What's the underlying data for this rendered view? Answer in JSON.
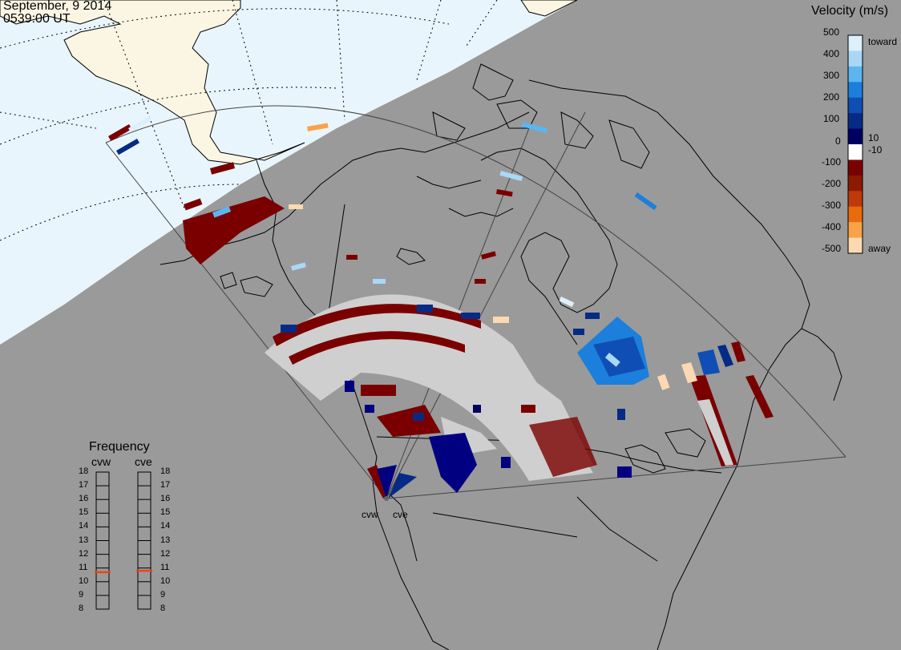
{
  "header": {
    "date": "September, 9 2014",
    "time": "0539:00 UT"
  },
  "colorbar": {
    "title": "Velocity (m/s)",
    "ticks": [
      "500",
      "400",
      "300",
      "200",
      "100",
      "10",
      "0",
      "-10",
      "-100",
      "-200",
      "-300",
      "-400",
      "-500"
    ],
    "toward_label": "toward",
    "away_label": "away",
    "colors": [
      "#deeffc",
      "#a9d8f7",
      "#5bb6f0",
      "#1c7fdc",
      "#0f4fb5",
      "#062b86",
      "#000060",
      "#ffffff",
      "#7a0000",
      "#8b1a00",
      "#c0390a",
      "#e86b0c",
      "#f9a24a",
      "#fcd9b2"
    ]
  },
  "frequency": {
    "title": "Frequency",
    "radars": [
      {
        "name": "cvw",
        "value_mhz": 10.7
      },
      {
        "name": "cve",
        "value_mhz": 10.8
      }
    ],
    "scale": [
      "18",
      "17",
      "16",
      "15",
      "14",
      "13",
      "12",
      "11",
      "10",
      "9",
      "8"
    ],
    "marker_color": "#e8461a"
  },
  "radars": [
    {
      "name": "cvw"
    },
    {
      "name": "cve"
    }
  ],
  "colors": {
    "night": "#9a9a9a",
    "day_ocean": "#e9f5fc",
    "day_land": "#fbf6e4",
    "ground_scatter": "#cfcfcf"
  }
}
